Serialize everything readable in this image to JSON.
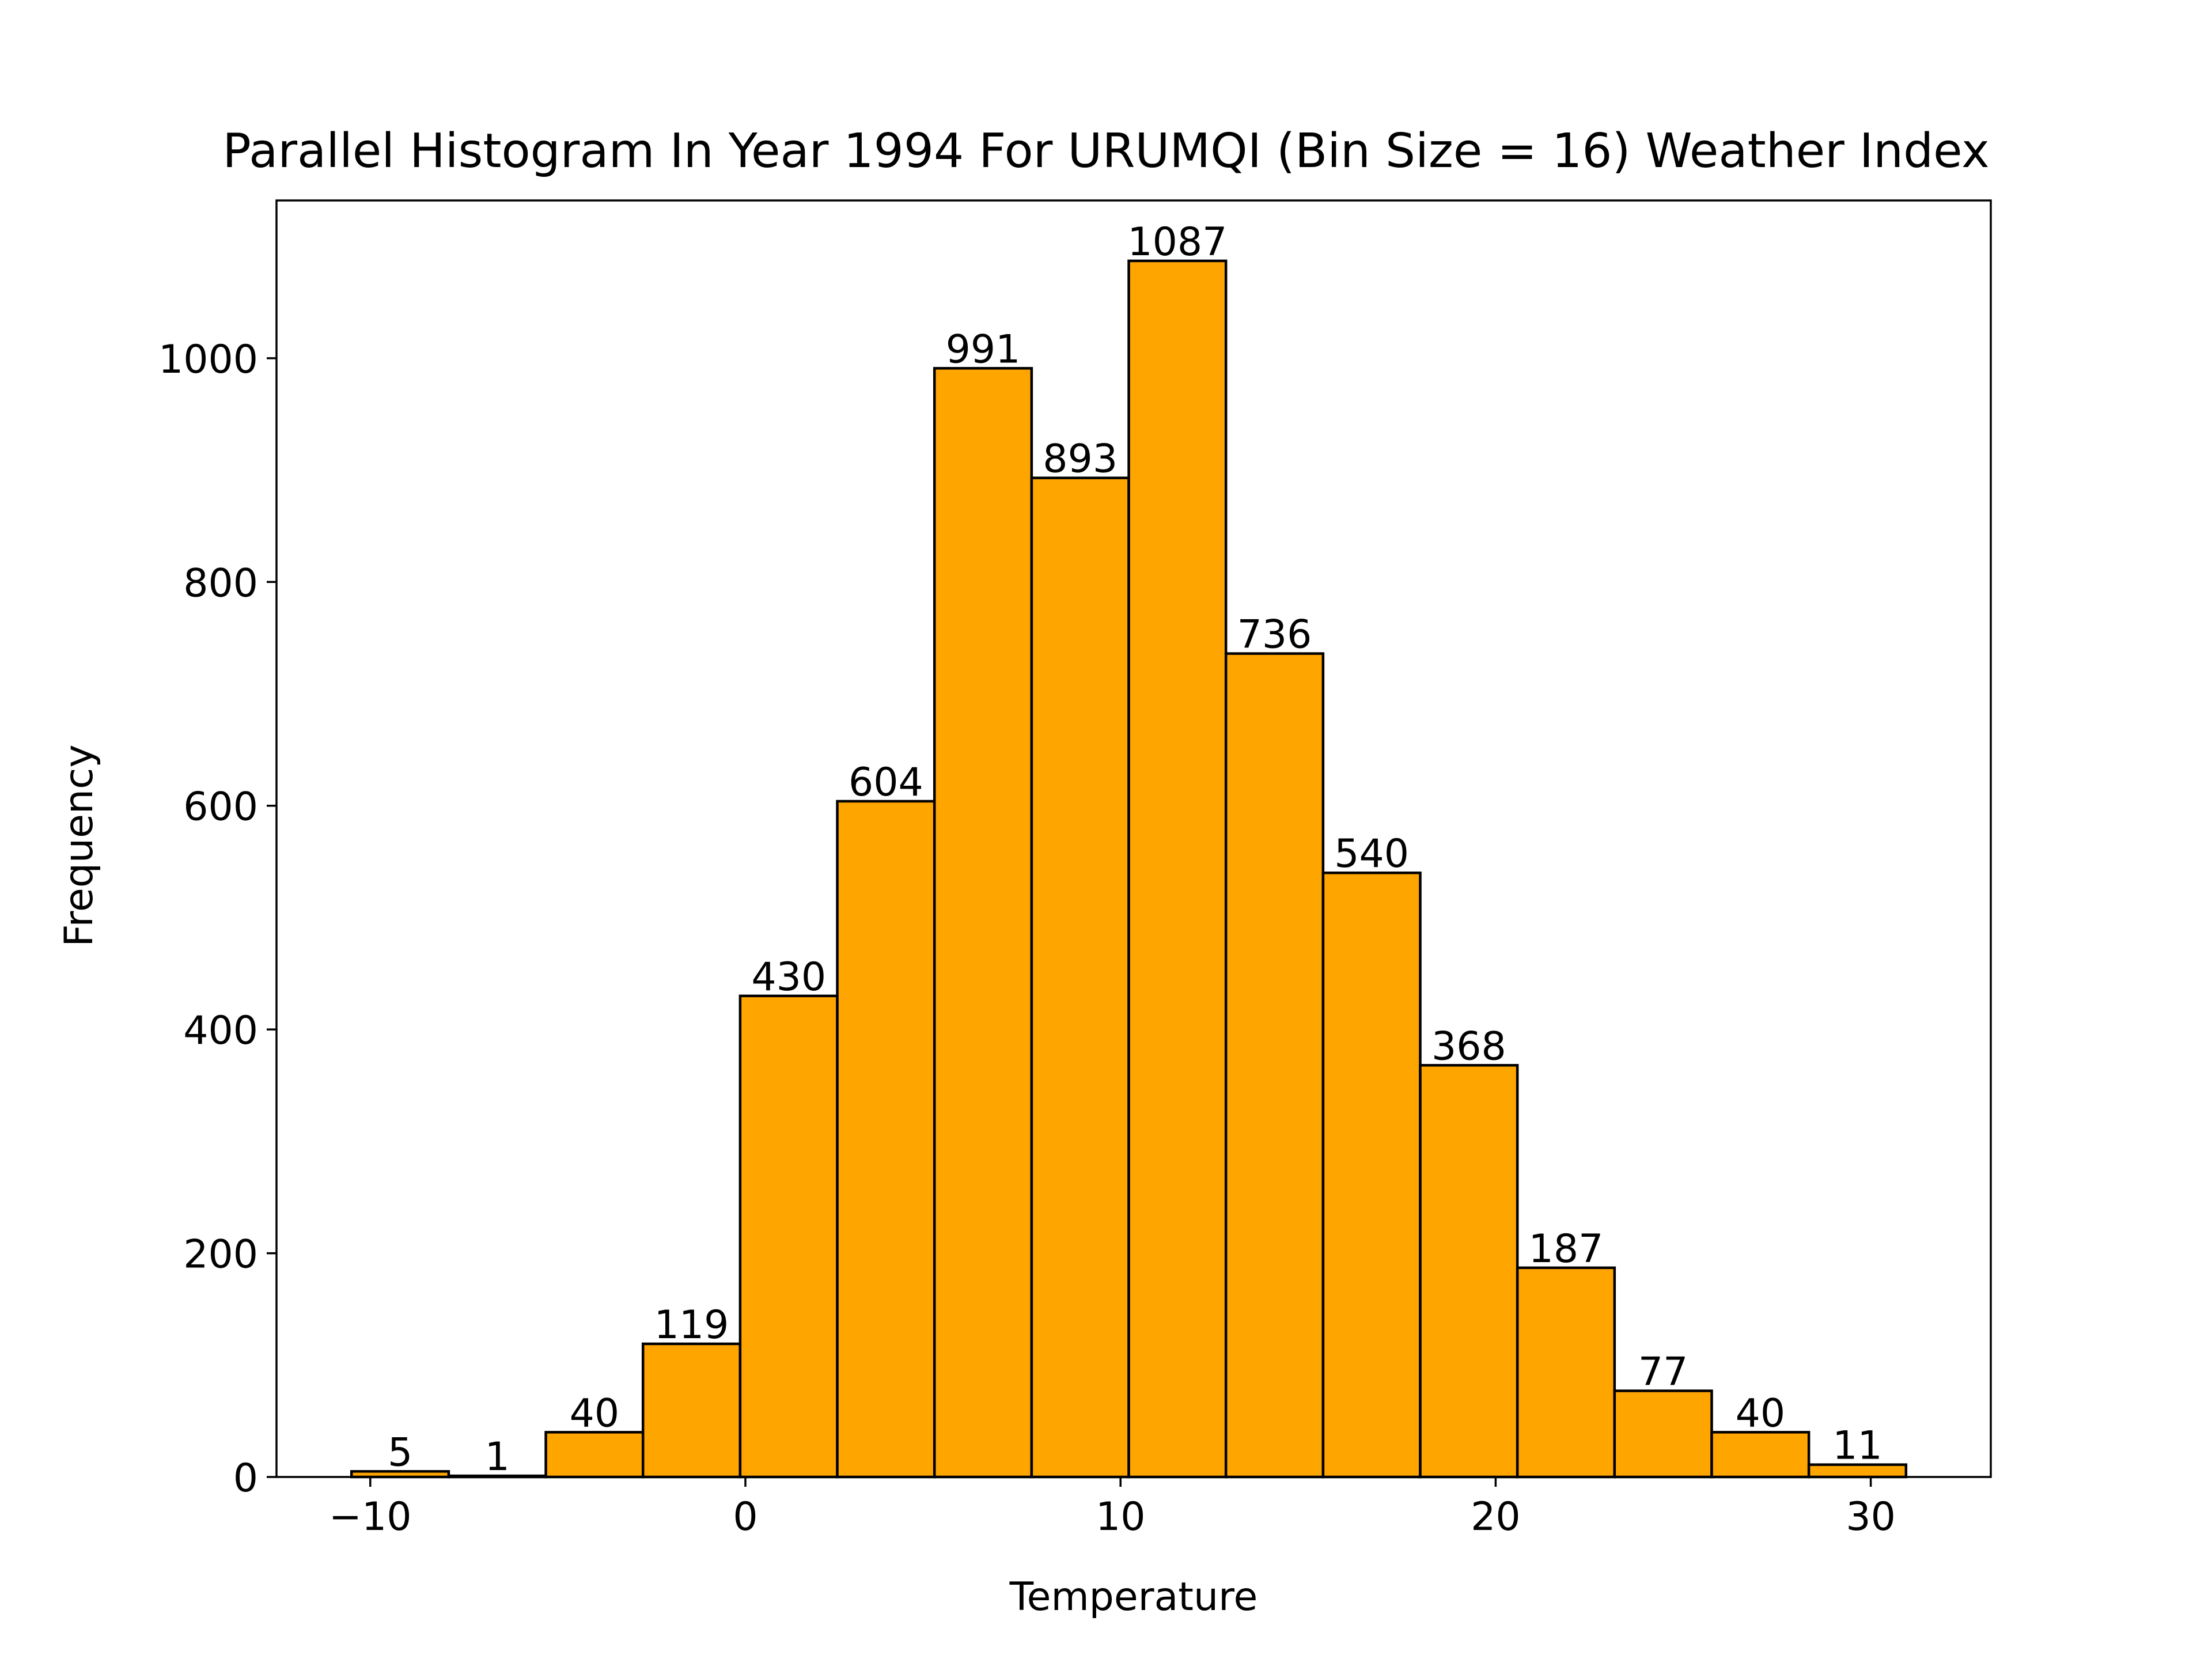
{
  "chart_data": {
    "type": "bar",
    "title": "Parallel Histogram In Year 1994 For URUMQI (Bin Size = 16) Weather Index",
    "xlabel": "Temperature",
    "ylabel": "Frequency",
    "bin_edges": [
      -10.5,
      -7.91,
      -5.32,
      -2.73,
      -0.14,
      2.45,
      5.04,
      7.63,
      10.22,
      12.81,
      15.4,
      17.99,
      20.58,
      23.17,
      25.76,
      28.35,
      30.94
    ],
    "values": [
      5,
      1,
      40,
      119,
      430,
      604,
      991,
      893,
      1087,
      736,
      540,
      368,
      187,
      77,
      40,
      11
    ],
    "xlim": [
      -12.5,
      33.2
    ],
    "ylim": [
      0,
      1141
    ],
    "xticks": [
      -10,
      0,
      10,
      20,
      30
    ],
    "xtick_labels": [
      "−10",
      "0",
      "10",
      "20",
      "30"
    ],
    "yticks": [
      0,
      200,
      400,
      600,
      800,
      1000
    ],
    "ytick_labels": [
      "0",
      "200",
      "400",
      "600",
      "800",
      "1000"
    ],
    "bar_color": "#ffa500",
    "edge_color": "#000000",
    "grid": false,
    "legend": "none"
  }
}
